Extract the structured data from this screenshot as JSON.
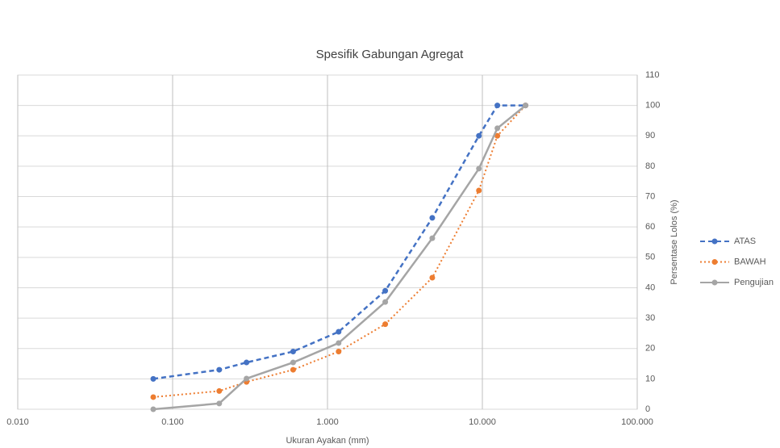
{
  "chart_data": {
    "type": "line",
    "title": "Spesifik Gabungan Agregat",
    "x_label": "Ukuran Ayakan (mm)",
    "y_label": "Persentase Lolos (%)",
    "x_scale": "log",
    "y_axis_side": "right",
    "grid": true,
    "legend": "right",
    "xlim": [
      0.01,
      100
    ],
    "xticks": [
      {
        "value": 0.01,
        "label": "0.010"
      },
      {
        "value": 0.1,
        "label": "0.100"
      },
      {
        "value": 1,
        "label": "1.000"
      },
      {
        "value": 10,
        "label": "10.000"
      },
      {
        "value": 100,
        "label": "100.000"
      }
    ],
    "ylim": [
      0,
      110
    ],
    "yticks": [
      0,
      10,
      20,
      30,
      40,
      50,
      60,
      70,
      80,
      90,
      100,
      110
    ],
    "series": [
      {
        "name": "ATAS",
        "color": "#4472c4",
        "line_style": "dashed",
        "x": [
          0.075,
          0.2,
          0.3,
          0.6,
          1.18,
          2.36,
          4.75,
          9.5,
          12.5,
          19
        ],
        "values": [
          10,
          13,
          15.4,
          19,
          25.5,
          39,
          63,
          90,
          100,
          100
        ]
      },
      {
        "name": "BAWAH",
        "color": "#ed7d31",
        "line_style": "dotted",
        "x": [
          0.075,
          0.2,
          0.3,
          0.6,
          1.18,
          2.36,
          4.75,
          9.5,
          12.5,
          19
        ],
        "values": [
          4,
          6,
          9,
          13,
          19,
          28,
          43.3,
          72,
          90,
          100
        ]
      },
      {
        "name": "Pengujian",
        "color": "#a5a5a5",
        "line_style": "solid",
        "x": [
          0.075,
          0.2,
          0.3,
          0.6,
          1.18,
          2.36,
          4.75,
          9.5,
          12.5,
          19
        ],
        "values": [
          0,
          1.9,
          10.1,
          15.4,
          21.8,
          35.3,
          56.3,
          79.2,
          92.5,
          100
        ]
      }
    ]
  }
}
